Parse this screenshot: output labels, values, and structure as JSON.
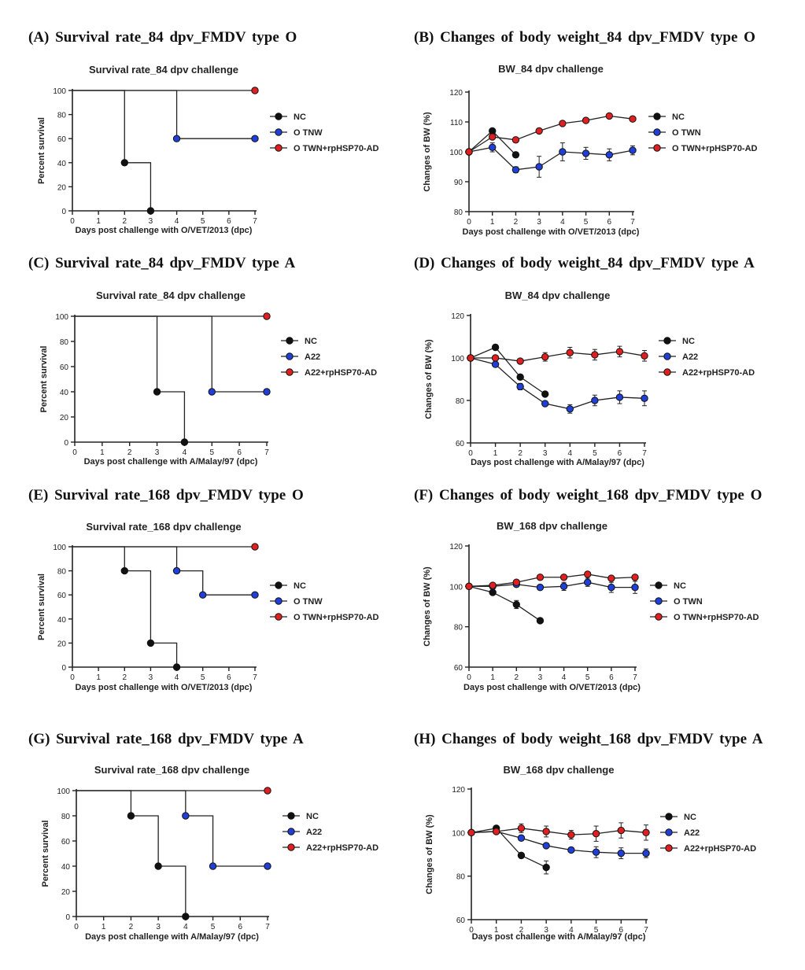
{
  "colors": {
    "NC": "#111111",
    "vaccine": "#1f3fd6",
    "vaccine_hsp": "#e02020",
    "axis": "#222222"
  },
  "chart_data": [
    {
      "heading": "(A) Survival rate_84 dpv_FMDV type O",
      "type": "line",
      "subtype": "survival-step",
      "title": "Survival rate_84 dpv challenge",
      "xlabel": "Days post challenge with O/VET/2013 (dpc)",
      "ylabel": "Percent survival",
      "xlim": [
        0,
        7
      ],
      "ylim": [
        0,
        100
      ],
      "xticks": [
        0,
        1,
        2,
        3,
        4,
        5,
        6,
        7
      ],
      "yticks": [
        0,
        20,
        40,
        60,
        80,
        100
      ],
      "series": [
        {
          "name": "NC",
          "color_key": "NC",
          "x": [
            0,
            2,
            3
          ],
          "y": [
            100,
            40,
            0
          ]
        },
        {
          "name": "O TNW",
          "color_key": "vaccine",
          "x": [
            0,
            4,
            7
          ],
          "y": [
            100,
            60,
            60
          ]
        },
        {
          "name": "O TWN+rpHSP70-AD",
          "color_key": "vaccine_hsp",
          "x": [
            0,
            7
          ],
          "y": [
            100,
            100
          ]
        }
      ]
    },
    {
      "heading": "(B) Changes of body weight_84 dpv_FMDV type O",
      "type": "line",
      "subtype": "errorbar",
      "title": "BW_84 dpv challenge",
      "xlabel": "Days post challenge with O/VET/2013 (dpc)",
      "ylabel": "Changes of BW (%)",
      "xlim": [
        0,
        7
      ],
      "ylim": [
        80,
        120
      ],
      "xticks": [
        0,
        1,
        2,
        3,
        4,
        5,
        6,
        7
      ],
      "yticks": [
        80,
        90,
        100,
        110,
        120
      ],
      "series": [
        {
          "name": "NC",
          "color_key": "NC",
          "x": [
            0,
            1,
            2
          ],
          "y": [
            100,
            107,
            99
          ],
          "err": [
            0,
            0.8,
            0.8
          ]
        },
        {
          "name": "O TWN",
          "color_key": "vaccine",
          "x": [
            0,
            1,
            2,
            3,
            4,
            5,
            6,
            7
          ],
          "y": [
            100,
            101.5,
            94,
            95,
            100,
            99.5,
            99,
            100.5
          ],
          "err": [
            0,
            1.5,
            1,
            3.5,
            3,
            2,
            2,
            1.5
          ]
        },
        {
          "name": "O TWN+rpHSP70-AD",
          "color_key": "vaccine_hsp",
          "x": [
            0,
            1,
            2,
            3,
            4,
            5,
            6,
            7
          ],
          "y": [
            100,
            105,
            104,
            107,
            109.5,
            110.5,
            112,
            111
          ],
          "err": [
            0,
            0.6,
            0.6,
            0.8,
            0.6,
            0.6,
            0.6,
            0.8
          ]
        }
      ]
    },
    {
      "heading": "(C) Survival rate_84 dpv_FMDV type A",
      "type": "line",
      "subtype": "survival-step",
      "title": "Survival rate_84 dpv challenge",
      "xlabel": "Days post challenge with A/Malay/97 (dpc)",
      "ylabel": "Percent survival",
      "xlim": [
        0,
        7
      ],
      "ylim": [
        0,
        100
      ],
      "xticks": [
        0,
        1,
        2,
        3,
        4,
        5,
        6,
        7
      ],
      "yticks": [
        0,
        20,
        40,
        60,
        80,
        100
      ],
      "series": [
        {
          "name": "NC",
          "color_key": "NC",
          "x": [
            0,
            3,
            4
          ],
          "y": [
            100,
            40,
            0
          ]
        },
        {
          "name": "A22",
          "color_key": "vaccine",
          "x": [
            0,
            5,
            7
          ],
          "y": [
            100,
            40,
            40
          ]
        },
        {
          "name": "A22+rpHSP70-AD",
          "color_key": "vaccine_hsp",
          "x": [
            0,
            7
          ],
          "y": [
            100,
            100
          ]
        }
      ]
    },
    {
      "heading": "(D) Changes of body weight_84 dpv_FMDV type A",
      "type": "line",
      "subtype": "errorbar",
      "title": "BW_84 dpv challenge",
      "xlabel": "Days post challenge with A/Malay/97 (dpc)",
      "ylabel": "Changes of BW (%)",
      "xlim": [
        0,
        7
      ],
      "ylim": [
        60,
        120
      ],
      "xticks": [
        0,
        1,
        2,
        3,
        4,
        5,
        6,
        7
      ],
      "yticks": [
        60,
        80,
        100,
        120
      ],
      "series": [
        {
          "name": "NC",
          "color_key": "NC",
          "x": [
            0,
            1,
            2,
            3
          ],
          "y": [
            100,
            105,
            91,
            83
          ],
          "err": [
            0,
            0.8,
            1.2,
            0.8
          ]
        },
        {
          "name": "A22",
          "color_key": "vaccine",
          "x": [
            0,
            1,
            2,
            3,
            4,
            5,
            6,
            7
          ],
          "y": [
            100,
            97,
            86.5,
            78.5,
            76,
            80,
            81.5,
            81
          ],
          "err": [
            0,
            1,
            1.5,
            1,
            2,
            2.5,
            3,
            3.5
          ]
        },
        {
          "name": "A22+rpHSP70-AD",
          "color_key": "vaccine_hsp",
          "x": [
            0,
            1,
            2,
            3,
            4,
            5,
            6,
            7
          ],
          "y": [
            100,
            100,
            98.5,
            100.5,
            102.5,
            101.5,
            103,
            101
          ],
          "err": [
            0,
            0.6,
            0.8,
            2,
            2.5,
            2.5,
            2.5,
            2.5
          ]
        }
      ]
    },
    {
      "heading": "(E) Survival rate_168 dpv_FMDV type O",
      "type": "line",
      "subtype": "survival-step",
      "title": "Survival rate_168 dpv challenge",
      "xlabel": "Days post challenge with O/VET/2013 (dpc)",
      "ylabel": "Percent survival",
      "xlim": [
        0,
        7
      ],
      "ylim": [
        0,
        100
      ],
      "xticks": [
        0,
        1,
        2,
        3,
        4,
        5,
        6,
        7
      ],
      "yticks": [
        0,
        20,
        40,
        60,
        80,
        100
      ],
      "series": [
        {
          "name": "NC",
          "color_key": "NC",
          "x": [
            0,
            2,
            3,
            4
          ],
          "y": [
            100,
            80,
            20,
            0
          ]
        },
        {
          "name": "O TNW",
          "color_key": "vaccine",
          "x": [
            0,
            4,
            5,
            7
          ],
          "y": [
            100,
            80,
            60,
            60
          ]
        },
        {
          "name": "O TWN+rpHSP70-AD",
          "color_key": "vaccine_hsp",
          "x": [
            0,
            7
          ],
          "y": [
            100,
            100
          ]
        }
      ]
    },
    {
      "heading": "(F) Changes of body weight_168 dpv_FMDV type O",
      "type": "line",
      "subtype": "errorbar",
      "title": "BW_168 dpv challenge",
      "xlabel": "Days post challenge with O/VET/2013 (dpc)",
      "ylabel": "Changes of BW (%)",
      "xlim": [
        0,
        7
      ],
      "ylim": [
        60,
        120
      ],
      "xticks": [
        0,
        1,
        2,
        3,
        4,
        5,
        6,
        7
      ],
      "yticks": [
        60,
        80,
        100,
        120
      ],
      "series": [
        {
          "name": "NC",
          "color_key": "NC",
          "x": [
            0,
            1,
            2,
            3
          ],
          "y": [
            100,
            97,
            91,
            83
          ],
          "err": [
            0,
            0.8,
            2,
            0.8
          ]
        },
        {
          "name": "O TWN",
          "color_key": "vaccine",
          "x": [
            0,
            1,
            2,
            3,
            4,
            5,
            6,
            7
          ],
          "y": [
            100,
            100,
            101,
            99.5,
            100,
            102,
            99.5,
            99.5
          ],
          "err": [
            0,
            0.8,
            1,
            1,
            2,
            2,
            2.5,
            3
          ]
        },
        {
          "name": "O TWN+rpHSP70-AD",
          "color_key": "vaccine_hsp",
          "x": [
            0,
            1,
            2,
            3,
            4,
            5,
            6,
            7
          ],
          "y": [
            100,
            100.5,
            102,
            104.5,
            104.5,
            106,
            104,
            104.5
          ],
          "err": [
            0,
            0.6,
            0.8,
            0.8,
            0.8,
            1,
            0.8,
            1
          ]
        }
      ]
    },
    {
      "heading": "(G) Survival rate_168 dpv_FMDV type A",
      "type": "line",
      "subtype": "survival-step",
      "title": "Survival rate_168 dpv challenge",
      "xlabel": "Days post challenge with A/Malay/97 (dpc)",
      "ylabel": "Percent survival",
      "xlim": [
        0,
        7
      ],
      "ylim": [
        0,
        100
      ],
      "xticks": [
        0,
        1,
        2,
        3,
        4,
        5,
        6,
        7
      ],
      "yticks": [
        0,
        20,
        40,
        60,
        80,
        100
      ],
      "series": [
        {
          "name": "NC",
          "color_key": "NC",
          "x": [
            0,
            2,
            3,
            4
          ],
          "y": [
            100,
            80,
            40,
            0
          ]
        },
        {
          "name": "A22",
          "color_key": "vaccine",
          "x": [
            0,
            4,
            5,
            7
          ],
          "y": [
            100,
            80,
            40,
            40
          ]
        },
        {
          "name": "A22+rpHSP70-AD",
          "color_key": "vaccine_hsp",
          "x": [
            0,
            7
          ],
          "y": [
            100,
            100
          ]
        }
      ]
    },
    {
      "heading": "(H) Changes of body weight_168 dpv_FMDV type A",
      "type": "line",
      "subtype": "errorbar",
      "title": "BW_168 dpv challenge",
      "xlabel": "Days post challenge with A/Malay/97 (dpc)",
      "ylabel": "Changes of BW (%)",
      "xlim": [
        0,
        7
      ],
      "ylim": [
        60,
        120
      ],
      "xticks": [
        0,
        1,
        2,
        3,
        4,
        5,
        6,
        7
      ],
      "yticks": [
        60,
        80,
        100,
        120
      ],
      "series": [
        {
          "name": "NC",
          "color_key": "NC",
          "x": [
            0,
            1,
            2,
            3
          ],
          "y": [
            100,
            102,
            89.5,
            84
          ],
          "err": [
            0,
            0.8,
            0.8,
            3
          ]
        },
        {
          "name": "A22",
          "color_key": "vaccine",
          "x": [
            0,
            1,
            2,
            3,
            4,
            5,
            6,
            7
          ],
          "y": [
            100,
            100.5,
            97.5,
            94,
            92,
            91,
            90.5,
            90.5
          ],
          "err": [
            0,
            0.6,
            1,
            1,
            1,
            2.5,
            2.5,
            2
          ]
        },
        {
          "name": "A22+rpHSP70-AD",
          "color_key": "vaccine_hsp",
          "x": [
            0,
            1,
            2,
            3,
            4,
            5,
            6,
            7
          ],
          "y": [
            100,
            100.5,
            102,
            100.5,
            99,
            99.5,
            101,
            100
          ],
          "err": [
            0,
            0.6,
            2,
            2.5,
            2,
            3.5,
            3.5,
            3.5
          ]
        }
      ]
    }
  ]
}
